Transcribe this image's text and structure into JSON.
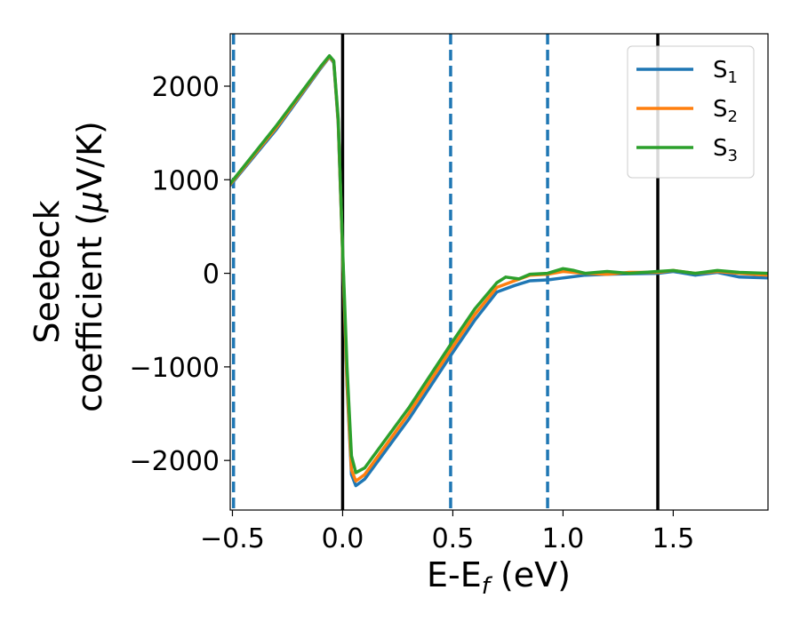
{
  "chart_data": {
    "type": "line",
    "xlabel": {
      "main": "E-E",
      "sub": "f",
      "rest": " (eV)"
    },
    "ylabel": {
      "line1": "Seebeck",
      "line2_prefix": "coefficient  (",
      "mu": "μ",
      "line2_suffix": "V/K)"
    },
    "xlim": [
      -0.51,
      1.93
    ],
    "ylim": [
      -2530,
      2560
    ],
    "x_ticks": [
      -0.5,
      0.0,
      0.5,
      1.0,
      1.5
    ],
    "x_tick_labels": [
      "−0.5",
      "0.0",
      "0.5",
      "1.0",
      "1.5"
    ],
    "y_ticks": [
      2000,
      1000,
      0,
      -1000,
      -2000
    ],
    "y_tick_labels": [
      "2000",
      "1000",
      "0",
      "−1000",
      "−2000"
    ],
    "grid": false,
    "legend_position": "top-right",
    "vlines": [
      {
        "x": -0.495,
        "style": "dashed",
        "color": "#1f77b4"
      },
      {
        "x": 0.0,
        "style": "solid",
        "color": "#000000"
      },
      {
        "x": 0.49,
        "style": "dashed",
        "color": "#1f77b4"
      },
      {
        "x": 0.93,
        "style": "dashed",
        "color": "#1f77b4"
      },
      {
        "x": 1.43,
        "style": "solid",
        "color": "#000000"
      }
    ],
    "series": [
      {
        "name": "S",
        "sub": "1",
        "color": "#1f77b4",
        "points": [
          [
            -0.51,
            940
          ],
          [
            -0.3,
            1540
          ],
          [
            -0.1,
            2190
          ],
          [
            -0.06,
            2310
          ],
          [
            -0.04,
            2250
          ],
          [
            -0.02,
            1600
          ],
          [
            0.0,
            200
          ],
          [
            0.02,
            -1200
          ],
          [
            0.04,
            -2150
          ],
          [
            0.06,
            -2270
          ],
          [
            0.1,
            -2200
          ],
          [
            0.3,
            -1560
          ],
          [
            0.49,
            -880
          ],
          [
            0.6,
            -500
          ],
          [
            0.7,
            -200
          ],
          [
            0.78,
            -130
          ],
          [
            0.85,
            -80
          ],
          [
            0.93,
            -70
          ],
          [
            1.0,
            -50
          ],
          [
            1.1,
            -20
          ],
          [
            1.2,
            -10
          ],
          [
            1.3,
            -5
          ],
          [
            1.43,
            0
          ],
          [
            1.5,
            20
          ],
          [
            1.6,
            -20
          ],
          [
            1.7,
            10
          ],
          [
            1.8,
            -40
          ],
          [
            1.93,
            -50
          ]
        ]
      },
      {
        "name": "S",
        "sub": "2",
        "color": "#ff7f0e",
        "points": [
          [
            -0.51,
            950
          ],
          [
            -0.3,
            1560
          ],
          [
            -0.1,
            2200
          ],
          [
            -0.06,
            2315
          ],
          [
            -0.04,
            2260
          ],
          [
            -0.02,
            1620
          ],
          [
            0.0,
            200
          ],
          [
            0.02,
            -1150
          ],
          [
            0.04,
            -2100
          ],
          [
            0.06,
            -2220
          ],
          [
            0.1,
            -2150
          ],
          [
            0.3,
            -1500
          ],
          [
            0.49,
            -820
          ],
          [
            0.6,
            -440
          ],
          [
            0.7,
            -150
          ],
          [
            0.78,
            -80
          ],
          [
            0.85,
            -20
          ],
          [
            0.93,
            -10
          ],
          [
            1.0,
            20
          ],
          [
            1.1,
            0
          ],
          [
            1.2,
            -10
          ],
          [
            1.3,
            10
          ],
          [
            1.43,
            10
          ],
          [
            1.5,
            30
          ],
          [
            1.6,
            0
          ],
          [
            1.7,
            20
          ],
          [
            1.8,
            0
          ],
          [
            1.93,
            -20
          ]
        ]
      },
      {
        "name": "S",
        "sub": "3",
        "color": "#2ca02c",
        "points": [
          [
            -0.51,
            960
          ],
          [
            -0.3,
            1580
          ],
          [
            -0.1,
            2210
          ],
          [
            -0.06,
            2325
          ],
          [
            -0.04,
            2270
          ],
          [
            -0.02,
            1650
          ],
          [
            0.0,
            250
          ],
          [
            0.02,
            -1000
          ],
          [
            0.04,
            -1950
          ],
          [
            0.06,
            -2130
          ],
          [
            0.1,
            -2080
          ],
          [
            0.3,
            -1440
          ],
          [
            0.49,
            -760
          ],
          [
            0.6,
            -380
          ],
          [
            0.7,
            -100
          ],
          [
            0.74,
            -40
          ],
          [
            0.8,
            -60
          ],
          [
            0.85,
            -10
          ],
          [
            0.93,
            0
          ],
          [
            1.0,
            50
          ],
          [
            1.05,
            30
          ],
          [
            1.1,
            0
          ],
          [
            1.2,
            20
          ],
          [
            1.3,
            0
          ],
          [
            1.43,
            20
          ],
          [
            1.5,
            30
          ],
          [
            1.6,
            0
          ],
          [
            1.7,
            30
          ],
          [
            1.8,
            10
          ],
          [
            1.93,
            0
          ]
        ]
      }
    ]
  }
}
